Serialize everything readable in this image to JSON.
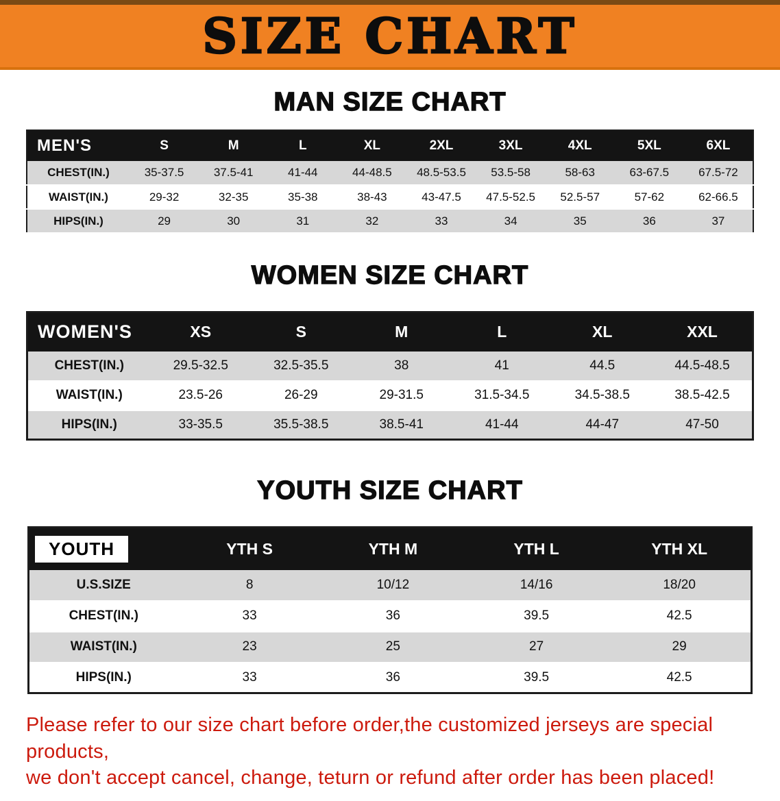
{
  "banner": {
    "title": "SIZE CHART",
    "bg_color": "#f08122",
    "text_color": "#0d0d0d"
  },
  "sections": [
    {
      "id": "men",
      "heading": "MAN SIZE CHART",
      "table": {
        "label": "MEN'S",
        "columns": [
          "S",
          "M",
          "L",
          "XL",
          "2XL",
          "3XL",
          "4XL",
          "5XL",
          "6XL"
        ],
        "rows": [
          {
            "label": "CHEST(IN.)",
            "values": [
              "35-37.5",
              "37.5-41",
              "41-44",
              "44-48.5",
              "48.5-53.5",
              "53.5-58",
              "58-63",
              "63-67.5",
              "67.5-72"
            ]
          },
          {
            "label": "WAIST(IN.)",
            "values": [
              "29-32",
              "32-35",
              "35-38",
              "38-43",
              "43-47.5",
              "47.5-52.5",
              "52.5-57",
              "57-62",
              "62-66.5"
            ]
          },
          {
            "label": "HIPS(IN.)",
            "values": [
              "29",
              "30",
              "31",
              "32",
              "33",
              "34",
              "35",
              "36",
              "37"
            ]
          }
        ]
      }
    },
    {
      "id": "women",
      "heading": "WOMEN SIZE CHART",
      "table": {
        "label": "WOMEN'S",
        "columns": [
          "XS",
          "S",
          "M",
          "L",
          "XL",
          "XXL"
        ],
        "rows": [
          {
            "label": "CHEST(IN.)",
            "values": [
              "29.5-32.5",
              "32.5-35.5",
              "38",
              "41",
              "44.5",
              "44.5-48.5"
            ]
          },
          {
            "label": "WAIST(IN.)",
            "values": [
              "23.5-26",
              "26-29",
              "29-31.5",
              "31.5-34.5",
              "34.5-38.5",
              "38.5-42.5"
            ]
          },
          {
            "label": "HIPS(IN.)",
            "values": [
              "33-35.5",
              "35.5-38.5",
              "38.5-41",
              "41-44",
              "44-47",
              "47-50"
            ]
          }
        ]
      }
    },
    {
      "id": "youth",
      "heading": "YOUTH SIZE CHART",
      "table": {
        "label": "YOUTH",
        "columns": [
          "YTH S",
          "YTH M",
          "YTH L",
          "YTH XL"
        ],
        "rows": [
          {
            "label": "U.S.SIZE",
            "values": [
              "8",
              "10/12",
              "14/16",
              "18/20"
            ]
          },
          {
            "label": "CHEST(IN.)",
            "values": [
              "33",
              "36",
              "39.5",
              "42.5"
            ]
          },
          {
            "label": "WAIST(IN.)",
            "values": [
              "23",
              "25",
              "27",
              "29"
            ]
          },
          {
            "label": "HIPS(IN.)",
            "values": [
              "33",
              "36",
              "39.5",
              "42.5"
            ]
          }
        ]
      }
    }
  ],
  "disclaimer": {
    "text_color": "#cc1a0d",
    "line1": "Please refer to our size chart before order,the customized jerseys are special products,",
    "line2": "we don't accept cancel, change, teturn or refund after order has been placed!"
  }
}
